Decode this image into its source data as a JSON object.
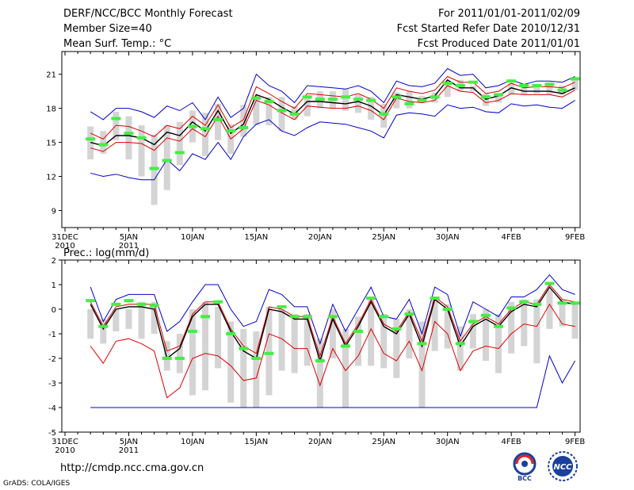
{
  "header": {
    "title": "DERF/NCC/BCC Monthly Forecast",
    "member_size": "Member Size=40",
    "variable": "Mean Surf. Temp.: °C",
    "period": "For 2011/01/01-2011/02/09",
    "started": "Fcst Started Refer Date 2010/12/31",
    "produced": "Fcst Produced Date 2011/01/01"
  },
  "footer": {
    "url": "http://cmdp.ncc.cma.gov.cn",
    "grads": "GrADS: COLA/IGES",
    "logo_left_text": "BCC",
    "logo_right_text": "NCC"
  },
  "colors": {
    "ensemble": "#0000cc",
    "spread": "#dd0000",
    "mean": "#000000",
    "observation": "#44ee44",
    "range_bar": "#d4d4d4"
  },
  "chart_data": [
    {
      "type": "line",
      "title": "Mean Surf. Temp.: °C",
      "x_tick_labels": [
        "31DEC",
        "5JAN",
        "10JAN",
        "15JAN",
        "20JAN",
        "25JAN",
        "30JAN",
        "4FEB",
        "9FEB"
      ],
      "x_tick_sublabels": [
        "2010",
        "2011",
        "",
        "",
        "",
        "",
        "",
        "",
        ""
      ],
      "x_tick_days": [
        0,
        5,
        10,
        15,
        20,
        25,
        30,
        35,
        40
      ],
      "y_ticks": [
        "9",
        "12",
        "15",
        "18",
        "21"
      ],
      "ylim": [
        7.5,
        23
      ],
      "days": [
        2,
        3,
        4,
        5,
        6,
        7,
        8,
        9,
        10,
        11,
        12,
        13,
        14,
        15,
        16,
        17,
        18,
        19,
        20,
        21,
        22,
        23,
        24,
        25,
        26,
        27,
        28,
        29,
        30,
        31,
        32,
        33,
        34,
        35,
        36,
        37,
        38,
        39,
        40
      ],
      "series": [
        {
          "name": "ensemble_max",
          "values": [
            17.7,
            17.0,
            18.0,
            18.0,
            17.7,
            17.2,
            18.2,
            17.8,
            18.5,
            17.0,
            19.0,
            17.2,
            18.0,
            21.0,
            20.0,
            19.5,
            18.5,
            20.0,
            19.9,
            19.8,
            19.7,
            20.0,
            19.5,
            18.5,
            20.4,
            20.0,
            19.9,
            20.2,
            21.5,
            20.9,
            21.0,
            19.8,
            20.0,
            20.5,
            20.1,
            20.4,
            20.4,
            20.3,
            20.8
          ]
        },
        {
          "name": "spread_upper",
          "values": [
            15.8,
            15.3,
            16.5,
            16.4,
            16.0,
            15.5,
            16.5,
            16.2,
            17.3,
            16.5,
            18.3,
            16.3,
            17.0,
            19.9,
            19.3,
            18.6,
            18.0,
            19.3,
            19.2,
            19.1,
            19.0,
            19.3,
            18.8,
            18.0,
            19.8,
            19.5,
            19.3,
            19.6,
            20.8,
            20.3,
            20.3,
            19.3,
            19.5,
            20.2,
            19.8,
            19.9,
            19.9,
            19.8,
            20.3
          ]
        },
        {
          "name": "ensemble_mean",
          "values": [
            15.0,
            14.7,
            15.6,
            15.6,
            15.4,
            14.8,
            15.9,
            15.6,
            16.8,
            16.0,
            17.8,
            15.8,
            16.6,
            19.2,
            18.8,
            18.1,
            17.5,
            18.6,
            18.6,
            18.5,
            18.4,
            18.6,
            18.2,
            17.4,
            19.2,
            19.0,
            18.8,
            19.1,
            20.5,
            19.8,
            19.8,
            18.8,
            19.1,
            19.8,
            19.5,
            19.5,
            19.5,
            19.3,
            19.8
          ]
        },
        {
          "name": "spread_lower",
          "values": [
            14.5,
            14.2,
            15.0,
            15.0,
            14.9,
            14.3,
            15.4,
            15.1,
            16.2,
            15.5,
            17.3,
            15.3,
            16.2,
            18.7,
            18.3,
            17.6,
            17.0,
            18.2,
            18.1,
            18.0,
            18.0,
            18.2,
            17.8,
            17.0,
            18.9,
            18.6,
            18.5,
            18.7,
            20.0,
            19.5,
            19.4,
            18.5,
            18.7,
            19.3,
            19.2,
            19.2,
            19.2,
            19.0,
            19.6
          ]
        },
        {
          "name": "ensemble_min",
          "values": [
            12.3,
            12.0,
            12.2,
            11.9,
            11.7,
            11.7,
            13.5,
            12.5,
            14.0,
            13.5,
            15.0,
            13.5,
            15.5,
            16.6,
            17.0,
            16.0,
            15.6,
            16.3,
            16.8,
            16.7,
            16.6,
            16.3,
            16.0,
            15.4,
            17.4,
            17.6,
            17.5,
            17.3,
            18.3,
            18.0,
            18.1,
            17.7,
            17.6,
            18.4,
            18.2,
            18.3,
            18.1,
            18.0,
            18.7
          ]
        },
        {
          "name": "observed",
          "values": [
            15.3,
            14.8,
            17.1,
            15.8,
            15.4,
            12.7,
            13.4,
            14.1,
            16.4,
            16.2,
            17.0,
            16.0,
            16.3,
            18.9,
            18.6,
            17.8,
            17.5,
            19.0,
            18.8,
            18.8,
            19.0,
            18.8,
            18.7,
            17.5,
            19.0,
            18.4,
            18.7,
            19.0,
            20.2,
            20.0,
            20.3,
            19.0,
            19.2,
            20.4,
            20.0,
            20.0,
            20.1,
            19.6,
            20.6
          ]
        }
      ],
      "range_bars": {
        "low": [
          13.5,
          14.0,
          15.2,
          13.5,
          12.0,
          9.5,
          10.8,
          13.0,
          15.0,
          13.8,
          15.2,
          14.0,
          15.5,
          16.5,
          16.5,
          16.0,
          17.0,
          17.3,
          18.0,
          18.0,
          17.8,
          17.6,
          17.0,
          16.3,
          18.0,
          18.0,
          18.5,
          18.5,
          19.0,
          19.5,
          19.5,
          18.2,
          18.5,
          19.2,
          19.2,
          19.3,
          19.2,
          19.2,
          19.6
        ],
        "high": [
          16.4,
          16.0,
          17.7,
          17.3,
          16.5,
          15.7,
          16.5,
          16.8,
          17.8,
          17.6,
          18.4,
          16.6,
          18.3,
          19.2,
          19.0,
          19.0,
          18.2,
          19.0,
          19.5,
          19.5,
          19.7,
          19.2,
          19.0,
          18.4,
          19.4,
          19.5,
          19.1,
          19.4,
          20.4,
          20.5,
          20.0,
          19.3,
          19.3,
          20.2,
          20.0,
          20.1,
          20.3,
          20.0,
          20.6
        ]
      }
    },
    {
      "type": "line",
      "title": "Prec.: log(mm/d)",
      "x_tick_labels": [
        "31DEC",
        "5JAN",
        "10JAN",
        "15JAN",
        "20JAN",
        "25JAN",
        "30JAN",
        "4FEB",
        "9FEB"
      ],
      "x_tick_sublabels": [
        "2010",
        "2011",
        "",
        "",
        "",
        "",
        "",
        "",
        ""
      ],
      "x_tick_days": [
        0,
        5,
        10,
        15,
        20,
        25,
        30,
        35,
        40
      ],
      "y_ticks": [
        "-5",
        "-4",
        "-3",
        "-2",
        "-1",
        "0",
        "1",
        "2"
      ],
      "ylim": [
        -5,
        2
      ],
      "days": [
        2,
        3,
        4,
        5,
        6,
        7,
        8,
        9,
        10,
        11,
        12,
        13,
        14,
        15,
        16,
        17,
        18,
        19,
        20,
        21,
        22,
        23,
        24,
        25,
        26,
        27,
        28,
        29,
        30,
        31,
        32,
        33,
        34,
        35,
        36,
        37,
        38,
        39,
        40
      ],
      "series": [
        {
          "name": "ensemble_max",
          "values": [
            0.9,
            -0.5,
            0.4,
            0.6,
            0.6,
            0.6,
            -0.9,
            -0.5,
            0.3,
            1.0,
            1.0,
            0.0,
            -0.7,
            -0.5,
            0.8,
            0.6,
            0.1,
            0.1,
            -1.4,
            0.2,
            -0.9,
            0.0,
            0.9,
            -0.3,
            -0.4,
            0.4,
            -1.0,
            0.9,
            0.6,
            -1.1,
            0.3,
            0.0,
            -0.3,
            0.5,
            0.5,
            0.8,
            1.4,
            0.8,
            0.6
          ]
        },
        {
          "name": "spread_upper",
          "values": [
            0.3,
            -0.7,
            0.1,
            0.2,
            0.2,
            0.2,
            -1.7,
            -1.5,
            -0.2,
            0.3,
            0.3,
            -0.8,
            -1.5,
            -1.8,
            0.1,
            0.0,
            -0.3,
            -0.3,
            -1.9,
            -0.3,
            -1.4,
            -0.6,
            0.4,
            -0.6,
            -0.9,
            -0.1,
            -1.3,
            0.5,
            0.1,
            -1.3,
            -0.6,
            -0.3,
            -0.6,
            0.0,
            0.3,
            0.2,
            1.0,
            0.4,
            0.3
          ]
        },
        {
          "name": "ensemble_mean",
          "values": [
            0.2,
            -0.8,
            0.0,
            0.1,
            0.1,
            0.0,
            -2.0,
            -1.6,
            -0.3,
            0.2,
            0.2,
            -0.9,
            -1.7,
            -2.0,
            0.0,
            -0.1,
            -0.4,
            -0.4,
            -2.1,
            -0.4,
            -1.5,
            -0.7,
            0.3,
            -0.7,
            -1.0,
            -0.2,
            -1.5,
            0.4,
            0.0,
            -1.5,
            -0.7,
            -0.4,
            -0.7,
            -0.1,
            0.2,
            0.1,
            0.9,
            0.3,
            0.2
          ]
        },
        {
          "name": "spread_lower",
          "values": [
            -1.5,
            -2.2,
            -1.3,
            -1.2,
            -1.4,
            -1.7,
            -3.6,
            -3.2,
            -2.0,
            -1.8,
            -1.9,
            -2.3,
            -2.9,
            -2.8,
            -1.0,
            -1.2,
            -1.6,
            -1.6,
            -3.1,
            -1.6,
            -2.5,
            -1.9,
            -0.8,
            -1.8,
            -2.1,
            -1.3,
            -2.5,
            -0.5,
            -1.0,
            -2.5,
            -1.7,
            -1.5,
            -1.6,
            -1.0,
            -0.6,
            -0.7,
            0.2,
            -0.6,
            -0.7
          ]
        },
        {
          "name": "ensemble_min",
          "values": [
            -4,
            -4,
            -4,
            -4,
            -4,
            -4,
            -4,
            -4,
            -4,
            -4,
            -4,
            -4,
            -4,
            -4,
            -4,
            -4,
            -4,
            -4,
            -4,
            -4,
            -4,
            -4,
            -4,
            -4,
            -4,
            -4,
            -4,
            -4,
            -4,
            -4,
            -4,
            -4,
            -4,
            -4,
            -4,
            -4,
            -1.9,
            -3.0,
            -2.1
          ]
        },
        {
          "name": "observed",
          "values": [
            0.35,
            -0.7,
            0.2,
            0.35,
            0.2,
            0.15,
            -2.0,
            -2.0,
            -0.9,
            -0.3,
            0.3,
            -1.0,
            -1.6,
            -2.0,
            -1.8,
            0.1,
            -0.3,
            -0.3,
            -2.1,
            -0.3,
            -1.5,
            -0.9,
            0.45,
            -0.3,
            -0.8,
            -0.2,
            -1.4,
            0.45,
            0.0,
            -1.4,
            -0.5,
            -0.25,
            -0.7,
            0.05,
            0.3,
            0.2,
            1.05,
            0.25,
            0.25
          ]
        }
      ],
      "range_bars": {
        "low": [
          -1.2,
          -1.4,
          -0.9,
          -0.8,
          -1.2,
          -1.0,
          -2.5,
          -2.6,
          -3.5,
          -3.3,
          -2.4,
          -3.8,
          -4.0,
          -4.0,
          -3.5,
          -2.5,
          -2.6,
          -2.3,
          -4.0,
          -2.0,
          -4.0,
          -2.3,
          -2.3,
          -2.4,
          -2.8,
          -2.0,
          -4.0,
          -1.7,
          -1.6,
          -2.5,
          -1.6,
          -2.1,
          -2.6,
          -1.8,
          -1.5,
          -2.2,
          -0.8,
          -0.7,
          -1.2
        ],
        "high": [
          0.0,
          -0.4,
          0.0,
          0.0,
          0.3,
          0.3,
          -1.3,
          -1.0,
          0.0,
          0.3,
          0.1,
          -0.5,
          -0.8,
          -0.9,
          0.1,
          0.0,
          -0.2,
          -0.2,
          -1.2,
          0.0,
          -0.8,
          -0.3,
          0.4,
          -0.2,
          -0.4,
          0.0,
          -0.5,
          0.5,
          0.2,
          -0.7,
          -0.2,
          0.0,
          -0.2,
          0.3,
          0.4,
          0.4,
          0.8,
          0.4,
          0.2
        ]
      }
    }
  ]
}
